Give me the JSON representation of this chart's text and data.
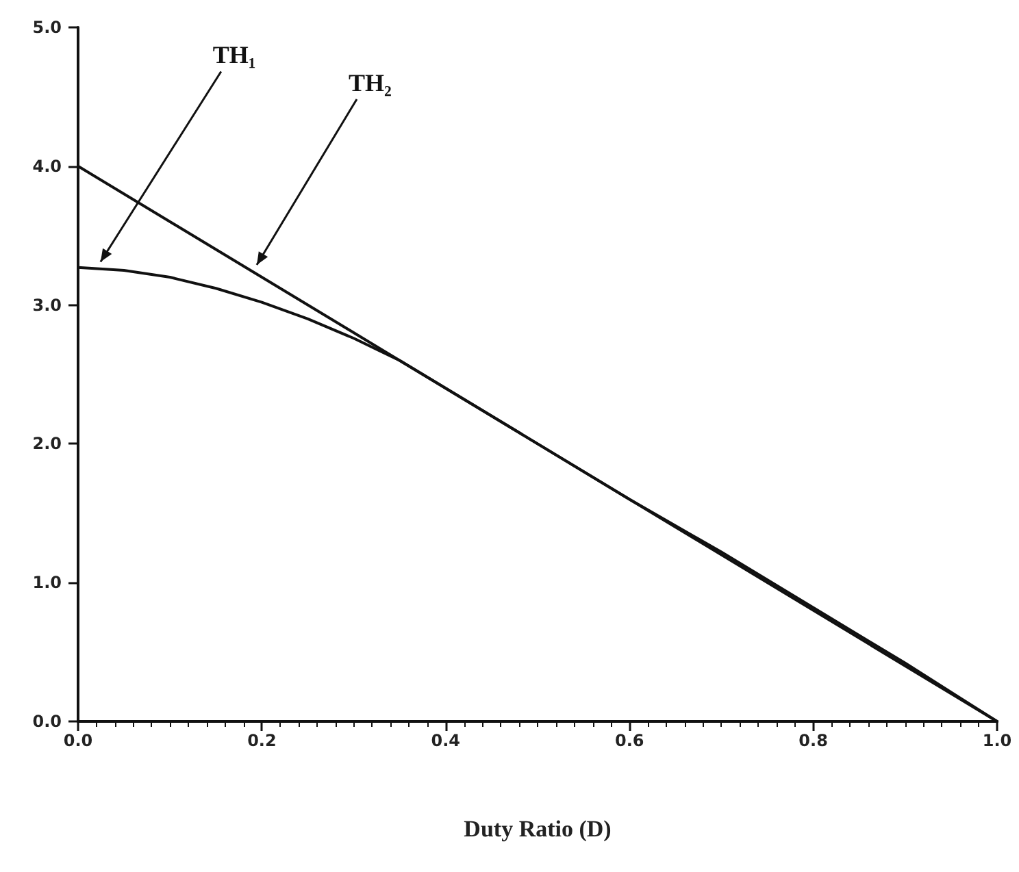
{
  "chart_data": {
    "type": "line",
    "xlabel": "Duty Ratio (D)",
    "xlim": [
      0,
      1
    ],
    "xticks": [
      {
        "value": 0,
        "label": "0.0"
      },
      {
        "value": 0.2,
        "label": "0.2"
      },
      {
        "value": 0.4,
        "label": "0.4"
      },
      {
        "value": 0.6,
        "label": "0.6"
      },
      {
        "value": 0.8,
        "label": "0.8"
      },
      {
        "value": 1,
        "label": "1.0"
      }
    ],
    "ylim": [
      0,
      5
    ],
    "yticks": [
      {
        "value": 0,
        "label": "0.0"
      },
      {
        "value": 1,
        "label": "1.0"
      },
      {
        "value": 2,
        "label": "2.0"
      },
      {
        "value": 3,
        "label": "3.0"
      },
      {
        "value": 4,
        "label": "4.0"
      },
      {
        "value": 5,
        "label": "5.0"
      }
    ],
    "grid": false,
    "marker": "none",
    "line_style": "solid",
    "series": [
      {
        "color": "#111111",
        "x": [
          0,
          0.05,
          0.1,
          0.15,
          0.2,
          0.25,
          0.3,
          0.35,
          0.4,
          0.5,
          0.6,
          0.7,
          0.8,
          0.9,
          1
        ],
        "values": [
          3.27,
          3.25,
          3.2,
          3.12,
          3.02,
          2.9,
          2.76,
          2.6,
          2.4,
          2.0,
          1.6,
          1.22,
          0.82,
          0.42,
          0
        ]
      },
      {
        "color": "#111111",
        "x": [
          0,
          1
        ],
        "values": [
          4,
          0
        ]
      }
    ],
    "annotations": [
      "TH₁",
      "TH₂"
    ]
  }
}
